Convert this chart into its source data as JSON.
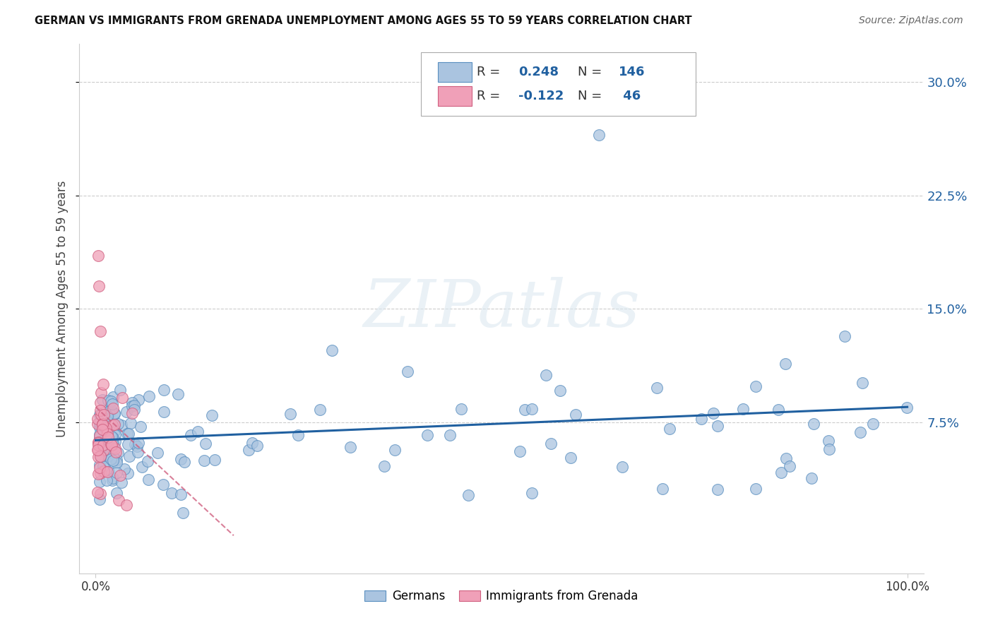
{
  "title": "GERMAN VS IMMIGRANTS FROM GRENADA UNEMPLOYMENT AMONG AGES 55 TO 59 YEARS CORRELATION CHART",
  "source": "Source: ZipAtlas.com",
  "ylabel": "Unemployment Among Ages 55 to 59 years",
  "blue_color": "#aac4e0",
  "blue_edge_color": "#5a8fc0",
  "blue_line_color": "#2060a0",
  "pink_color": "#f0a0b8",
  "pink_edge_color": "#d06080",
  "pink_line_color": "#d06080",
  "legend_blue_r": "0.248",
  "legend_blue_n": "146",
  "legend_pink_r": "-0.122",
  "legend_pink_n": "46",
  "watermark": "ZIPatlas",
  "xlim": [
    -0.02,
    1.02
  ],
  "ylim": [
    -0.025,
    0.325
  ],
  "ytick_vals": [
    0.075,
    0.15,
    0.225,
    0.3
  ],
  "ytick_labels": [
    "7.5%",
    "15.0%",
    "22.5%",
    "30.0%"
  ],
  "bg_color": "#ffffff",
  "grid_color": "#cccccc"
}
